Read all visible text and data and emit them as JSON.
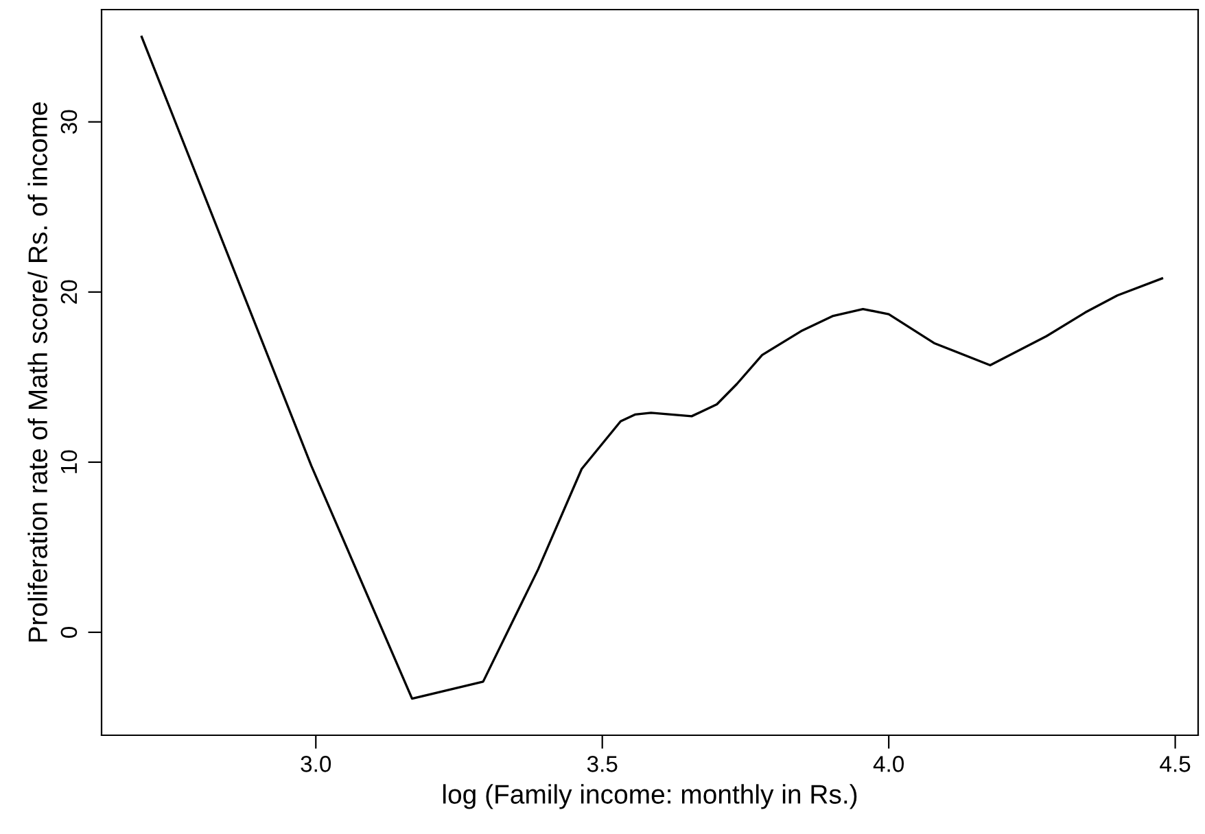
{
  "chart_data": {
    "type": "line",
    "xlabel": "log (Family income: monthly in Rs.)",
    "ylabel": "Proliferation rate of Math score/ Rs. of income",
    "x": [
      2.696,
      2.992,
      3.168,
      3.292,
      3.388,
      3.464,
      3.532,
      3.557,
      3.585,
      3.656,
      3.7,
      3.735,
      3.779,
      3.847,
      3.903,
      3.955,
      4.0,
      4.079,
      4.177,
      4.275,
      4.343,
      4.399,
      4.477
    ],
    "series": [
      {
        "color": "#000000",
        "values": [
          35.0,
          9.8,
          -3.9,
          -2.9,
          3.7,
          9.6,
          12.4,
          12.8,
          12.9,
          12.7,
          13.4,
          14.6,
          16.3,
          17.7,
          18.6,
          19.0,
          18.7,
          17.0,
          15.7,
          17.4,
          18.8,
          19.8,
          20.8
        ]
      }
    ],
    "xlim": [
      2.626,
      4.54
    ],
    "ylim": [
      -6.05,
      36.6
    ],
    "xticks": [
      {
        "value": 3.0,
        "label": "3.0"
      },
      {
        "value": 3.5,
        "label": "3.5"
      },
      {
        "value": 4.0,
        "label": "4.0"
      },
      {
        "value": 4.5,
        "label": "4.5"
      }
    ],
    "yticks": [
      0,
      10,
      20,
      30
    ],
    "grid": false,
    "legend": false,
    "marker": "none",
    "line_style": "solid"
  }
}
